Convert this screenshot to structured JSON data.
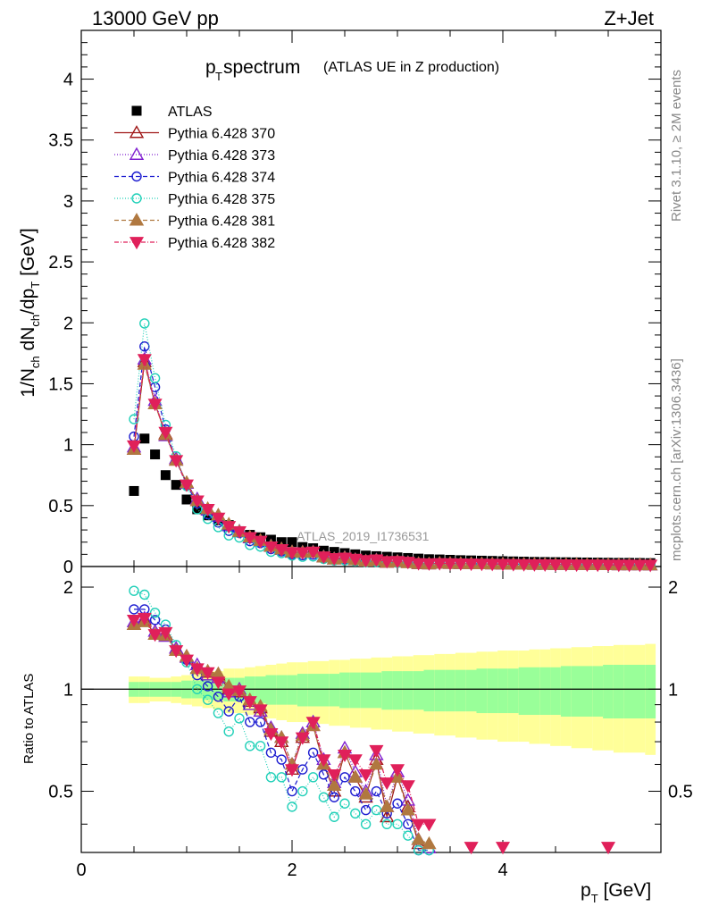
{
  "header": {
    "energy_label": "13000 GeV pp",
    "process_label": "Z+Jet",
    "analysis_tag": "ATLAS_2019_I1736531",
    "side_top": "Rivet 3.1.10, ≥ 2M events",
    "side_bottom": "mcplots.cern.ch [arXiv:1306.3436]"
  },
  "title": {
    "main_p": "p",
    "main_sub": "T",
    "main_rest": " spectrum",
    "subtitle": "(ATLAS UE in Z production)"
  },
  "axes": {
    "upper_ylabel": "1/N_ch dN_ch/dp_T [GeV]",
    "lower_ylabel": "Ratio to ATLAS",
    "xlabel": "p_T [GeV]",
    "x_ticks": [
      "0",
      "2",
      "4"
    ],
    "upper_y_ticks": [
      "0",
      "0.5",
      "1",
      "1.5",
      "2",
      "2.5",
      "3",
      "3.5",
      "4"
    ],
    "lower_y_ticks": [
      "0.5",
      "1",
      "2"
    ]
  },
  "legend": [
    {
      "label": "ATLAS",
      "color": "#000000",
      "marker": "square",
      "dash": ""
    },
    {
      "label": "Pythia 6.428 370",
      "color": "#a01818",
      "marker": "triangle-open",
      "dash": ""
    },
    {
      "label": "Pythia 6.428 373",
      "color": "#8020d0",
      "marker": "triangle-open",
      "dash": "1,2"
    },
    {
      "label": "Pythia 6.428 374",
      "color": "#1c1cd0",
      "marker": "circle-open",
      "dash": "5,3"
    },
    {
      "label": "Pythia 6.428 375",
      "color": "#20d0b8",
      "marker": "circle-open",
      "dash": "1,2"
    },
    {
      "label": "Pythia 6.428 381",
      "color": "#b07840",
      "marker": "triangle-filled",
      "dash": "5,3"
    },
    {
      "label": "Pythia 6.428 382",
      "color": "#e0205a",
      "marker": "triangle-down-filled",
      "dash": "5,2,1,2"
    }
  ],
  "chart_data": {
    "type": "scatter",
    "title": "p_T spectrum (ATLAS UE in Z production)",
    "xlabel": "p_T [GeV]",
    "ylabel": "1/N_ch dN_ch/dp_T [GeV]",
    "xlim": [
      0,
      5.5
    ],
    "ylim": [
      0,
      4.4
    ],
    "ratio_ylim": [
      0.33,
      2.3
    ],
    "x": [
      0.5,
      0.6,
      0.7,
      0.8,
      0.9,
      1.0,
      1.1,
      1.2,
      1.3,
      1.4,
      1.5,
      1.6,
      1.7,
      1.8,
      1.9,
      2.0,
      2.1,
      2.2,
      2.3,
      2.4,
      2.5,
      2.6,
      2.7,
      2.8,
      2.9,
      3.0,
      3.1,
      3.2,
      3.3,
      3.4,
      3.5,
      3.6,
      3.7,
      3.8,
      3.9,
      4.0,
      4.1,
      4.2,
      4.3,
      4.4,
      4.5,
      4.6,
      4.7,
      4.8,
      4.9,
      5.0,
      5.1,
      5.2,
      5.3,
      5.4
    ],
    "atlas": [
      0.62,
      1.05,
      0.92,
      0.75,
      0.67,
      0.55,
      0.47,
      0.42,
      0.38,
      0.34,
      0.29,
      0.26,
      0.24,
      0.22,
      0.2,
      0.2,
      0.16,
      0.15,
      0.13,
      0.12,
      0.11,
      0.1,
      0.09,
      0.085,
      0.08,
      0.075,
      0.07,
      0.065,
      0.06,
      0.058,
      0.055,
      0.052,
      0.05,
      0.048,
      0.046,
      0.044,
      0.042,
      0.04,
      0.038,
      0.037,
      0.036,
      0.035,
      0.034,
      0.033,
      0.032,
      0.031,
      0.03,
      0.03,
      0.029,
      0.028
    ],
    "band_green": [
      0.05,
      0.05,
      0.05,
      0.05,
      0.05,
      0.06,
      0.06,
      0.07,
      0.07,
      0.08,
      0.08,
      0.09,
      0.09,
      0.1,
      0.1,
      0.1,
      0.11,
      0.11,
      0.11,
      0.11,
      0.12,
      0.12,
      0.12,
      0.12,
      0.13,
      0.13,
      0.13,
      0.13,
      0.14,
      0.14,
      0.14,
      0.14,
      0.14,
      0.15,
      0.15,
      0.15,
      0.15,
      0.16,
      0.16,
      0.16,
      0.16,
      0.17,
      0.17,
      0.17,
      0.17,
      0.18,
      0.18,
      0.18,
      0.18,
      0.18
    ],
    "band_yellow": [
      0.09,
      0.09,
      0.08,
      0.08,
      0.09,
      0.1,
      0.11,
      0.12,
      0.13,
      0.15,
      0.15,
      0.16,
      0.17,
      0.18,
      0.19,
      0.2,
      0.2,
      0.21,
      0.21,
      0.22,
      0.22,
      0.23,
      0.23,
      0.24,
      0.24,
      0.25,
      0.25,
      0.26,
      0.26,
      0.27,
      0.27,
      0.28,
      0.28,
      0.29,
      0.29,
      0.3,
      0.3,
      0.3,
      0.31,
      0.31,
      0.32,
      0.32,
      0.33,
      0.33,
      0.34,
      0.34,
      0.35,
      0.35,
      0.35,
      0.36
    ],
    "series": [
      {
        "name": "Pythia 6.428 370",
        "ratio": [
          1.55,
          1.6,
          1.45,
          1.45,
          1.3,
          1.25,
          1.15,
          1.12,
          1.1,
          1.0,
          0.98,
          0.92,
          0.88,
          0.75,
          0.7,
          0.58,
          0.72,
          0.78,
          0.6,
          0.5,
          0.65,
          0.55,
          0.48,
          0.62,
          0.42,
          0.55,
          0.45,
          0.35,
          0.34
        ]
      },
      {
        "name": "Pythia 6.428 373",
        "ratio": [
          1.58,
          1.62,
          1.48,
          1.43,
          1.32,
          1.24,
          1.18,
          1.1,
          1.08,
          0.98,
          1.0,
          0.9,
          0.86,
          0.77,
          0.72,
          0.6,
          0.74,
          0.8,
          0.62,
          0.53,
          0.67,
          0.57,
          0.5,
          0.64,
          0.45,
          0.57,
          0.47,
          0.36,
          0.34
        ]
      },
      {
        "name": "Pythia 6.428 374",
        "ratio": [
          1.72,
          1.72,
          1.6,
          1.5,
          1.3,
          1.22,
          1.1,
          1.02,
          0.95,
          0.86,
          0.95,
          0.8,
          0.8,
          0.65,
          0.62,
          0.5,
          0.58,
          0.65,
          0.56,
          0.48,
          0.55,
          0.5,
          0.44,
          0.5,
          0.43,
          0.46,
          0.4,
          0.33,
          0.33
        ]
      },
      {
        "name": "Pythia 6.428 375",
        "ratio": [
          1.95,
          1.9,
          1.68,
          1.55,
          1.35,
          1.2,
          1.0,
          0.93,
          0.85,
          0.75,
          0.82,
          0.68,
          0.68,
          0.55,
          0.55,
          0.45,
          0.5,
          0.55,
          0.48,
          0.42,
          0.46,
          0.43,
          0.4,
          0.44,
          0.4,
          0.4,
          0.37,
          0.33,
          0.33
        ]
      },
      {
        "name": "Pythia 6.428 381",
        "ratio": [
          1.55,
          1.58,
          1.45,
          1.44,
          1.3,
          1.25,
          1.15,
          1.13,
          1.11,
          1.02,
          0.99,
          0.93,
          0.89,
          0.76,
          0.72,
          0.6,
          0.73,
          0.78,
          0.6,
          0.52,
          0.65,
          0.55,
          0.49,
          0.6,
          0.45,
          0.55,
          0.44,
          0.36,
          0.35
        ]
      },
      {
        "name": "Pythia 6.428 382",
        "ratio": [
          1.6,
          1.62,
          1.45,
          1.47,
          1.3,
          1.22,
          1.15,
          1.12,
          1.05,
          0.97,
          0.99,
          0.92,
          0.87,
          0.74,
          0.7,
          0.58,
          0.72,
          0.8,
          0.62,
          0.56,
          0.64,
          0.62,
          0.56,
          0.66,
          0.53,
          0.58,
          0.52,
          0.4,
          0.4
        ]
      }
    ],
    "extra_offscale_x": [
      3.7,
      4.0,
      5.0
    ]
  }
}
